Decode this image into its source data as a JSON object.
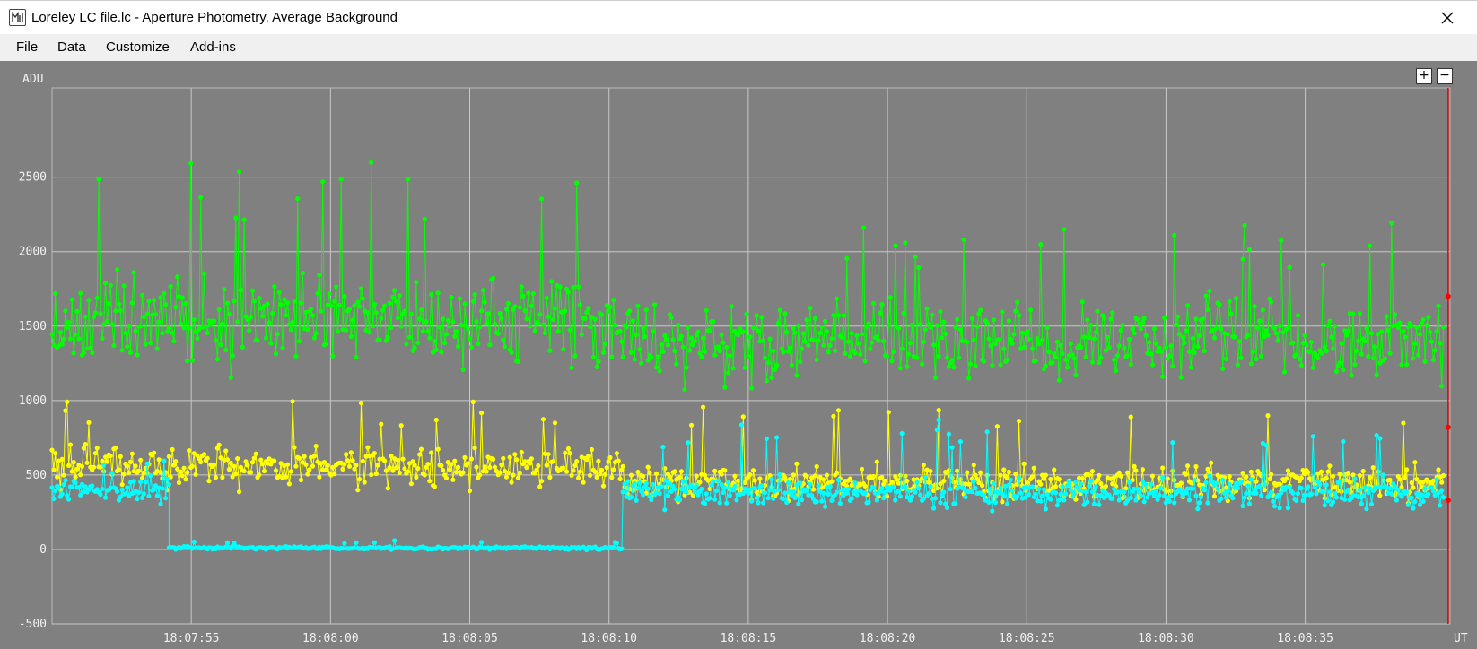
{
  "window": {
    "title": "Loreley LC file.lc - Aperture Photometry, Average Background",
    "icon": "app-logo-icon",
    "close_icon": "close-icon"
  },
  "menu": [
    {
      "label": "File"
    },
    {
      "label": "Data"
    },
    {
      "label": "Customize"
    },
    {
      "label": "Add-ins"
    }
  ],
  "toolbar": {
    "zoom_in_label": "+",
    "zoom_out_label": "−"
  },
  "colors": {
    "background": "#808080",
    "grid": "#c8c8c8",
    "series_green": "#00ff00",
    "series_yellow": "#ffff00",
    "series_cyan": "#00ffff",
    "marker": "#ff0000"
  },
  "chart_data": {
    "type": "line",
    "ylabel": "ADU",
    "xlabel": "UT",
    "ylim": [
      -500,
      3100
    ],
    "xlim": [
      "18:07:50.0",
      "18:08:40.2"
    ],
    "yticks": [
      -500,
      0,
      500,
      1000,
      1500,
      2000,
      2500
    ],
    "xticks": [
      "18:07:55",
      "18:08:00",
      "18:08:05",
      "18:08:10",
      "18:08:15",
      "18:08:20",
      "18:08:25",
      "18:08:30",
      "18:08:35"
    ],
    "grid": true,
    "series": [
      {
        "color": "#00ff00",
        "description": "noisy series",
        "segments": [
          {
            "t_start": "18:07:50.0",
            "t_end": "18:08:10.5",
            "mean": 1550,
            "spread": 420,
            "spike_max": 2650
          },
          {
            "t_start": "18:08:10.5",
            "t_end": "18:08:40.0",
            "mean": 1400,
            "spread": 380,
            "spike_max": 2200
          }
        ]
      },
      {
        "color": "#ffff00",
        "segments": [
          {
            "t_start": "18:07:50.0",
            "t_end": "18:08:10.5",
            "mean": 560,
            "spread": 190,
            "spike_max": 1000
          },
          {
            "t_start": "18:08:10.5",
            "t_end": "18:08:40.0",
            "mean": 450,
            "spread": 160,
            "spike_max": 1000
          }
        ]
      },
      {
        "color": "#00ffff",
        "segments": [
          {
            "t_start": "18:07:50.0",
            "t_end": "18:07:54.2",
            "mean": 400,
            "spread": 130,
            "spike_max": 650
          },
          {
            "t_start": "18:07:54.2",
            "t_end": "18:08:10.5",
            "mean": 10,
            "spread": 15,
            "spike_max": 60
          },
          {
            "t_start": "18:08:10.5",
            "t_end": "18:08:40.0",
            "mean": 380,
            "spread": 140,
            "spike_max": 880
          }
        ]
      }
    ],
    "marker_time": "18:08:40.0",
    "marker_points": [
      1700,
      820,
      330
    ]
  }
}
